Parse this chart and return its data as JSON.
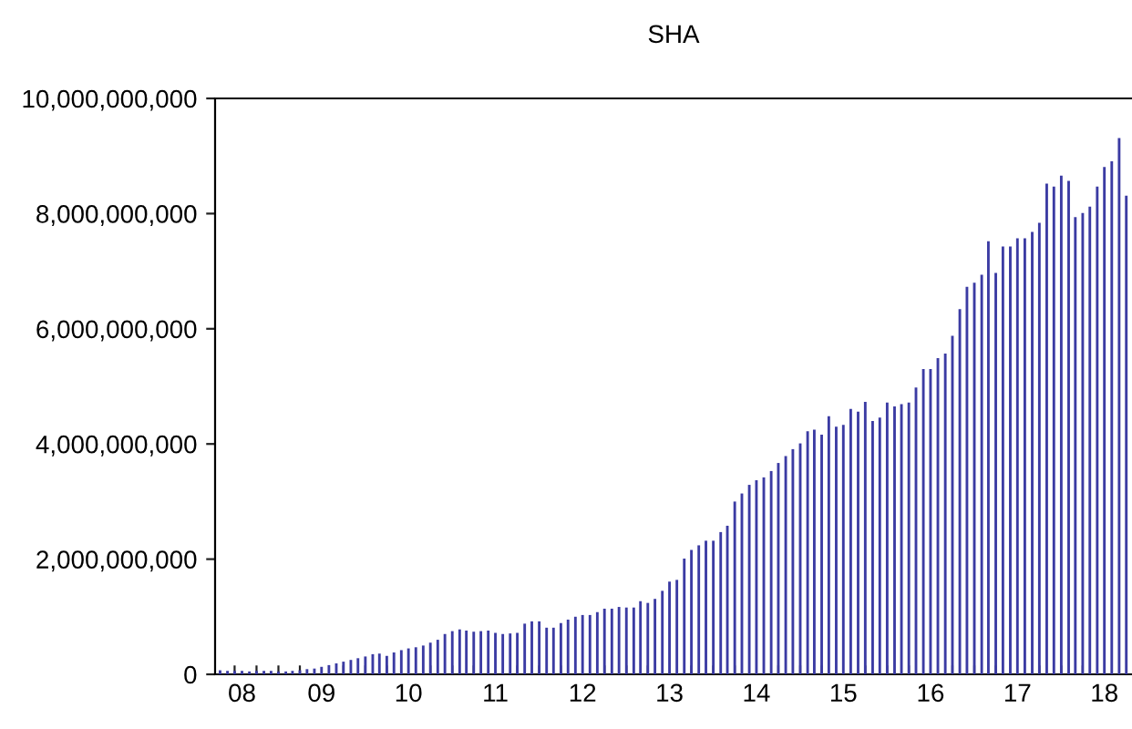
{
  "chart_data": {
    "type": "bar",
    "title": "SHA",
    "x": [
      "2008-05",
      "2008-06",
      "2008-07",
      "2008-08",
      "2008-09",
      "2008-10",
      "2008-11",
      "2008-12",
      "2009-01",
      "2009-02",
      "2009-03",
      "2009-04",
      "2009-05",
      "2009-06",
      "2009-07",
      "2009-08",
      "2009-09",
      "2009-10",
      "2009-11",
      "2009-12",
      "2010-01",
      "2010-02",
      "2010-03",
      "2010-04",
      "2010-05",
      "2010-06",
      "2010-07",
      "2010-08",
      "2010-09",
      "2010-10",
      "2010-11",
      "2010-12",
      "2011-01",
      "2011-02",
      "2011-03",
      "2011-04",
      "2011-05",
      "2011-06",
      "2011-07",
      "2011-08",
      "2011-09",
      "2011-10",
      "2011-11",
      "2011-12",
      "2012-01",
      "2012-02",
      "2012-03",
      "2012-04",
      "2012-05",
      "2012-06",
      "2012-07",
      "2012-08",
      "2012-09",
      "2012-10",
      "2012-11",
      "2012-12",
      "2013-01",
      "2013-02",
      "2013-03",
      "2013-04",
      "2013-05",
      "2013-06",
      "2013-07",
      "2013-08",
      "2013-09",
      "2013-10",
      "2013-11",
      "2013-12",
      "2014-01",
      "2014-02",
      "2014-03",
      "2014-04",
      "2014-05",
      "2014-06",
      "2014-07",
      "2014-08",
      "2014-09",
      "2014-10",
      "2014-11",
      "2014-12",
      "2015-01",
      "2015-02",
      "2015-03",
      "2015-04",
      "2015-05",
      "2015-06",
      "2015-07",
      "2015-08",
      "2015-09",
      "2015-10",
      "2015-11",
      "2015-12",
      "2016-01",
      "2016-02",
      "2016-03",
      "2016-04",
      "2016-05",
      "2016-06",
      "2016-07",
      "2016-08",
      "2016-09",
      "2016-10",
      "2016-11",
      "2016-12",
      "2017-01",
      "2017-02",
      "2017-03",
      "2017-04",
      "2017-05",
      "2017-06",
      "2017-07",
      "2017-08",
      "2017-09",
      "2017-10",
      "2017-11",
      "2017-12",
      "2018-01",
      "2018-02",
      "2018-03",
      "2018-04",
      "2018-05",
      "2018-06",
      "2018-07",
      "2018-08",
      "2018-09",
      "2018-10"
    ],
    "values": [
      70000000,
      60000000,
      60000000,
      60000000,
      50000000,
      60000000,
      60000000,
      60000000,
      50000000,
      50000000,
      60000000,
      70000000,
      90000000,
      100000000,
      130000000,
      160000000,
      190000000,
      220000000,
      250000000,
      280000000,
      310000000,
      350000000,
      360000000,
      320000000,
      380000000,
      420000000,
      450000000,
      470000000,
      500000000,
      550000000,
      600000000,
      700000000,
      750000000,
      780000000,
      760000000,
      740000000,
      750000000,
      760000000,
      720000000,
      700000000,
      710000000,
      720000000,
      880000000,
      920000000,
      920000000,
      810000000,
      810000000,
      890000000,
      950000000,
      1000000000,
      1030000000,
      1030000000,
      1080000000,
      1140000000,
      1140000000,
      1170000000,
      1160000000,
      1160000000,
      1270000000,
      1240000000,
      1310000000,
      1450000000,
      1610000000,
      1640000000,
      2010000000,
      2160000000,
      2240000000,
      2320000000,
      2320000000,
      2470000000,
      2580000000,
      3000000000,
      3140000000,
      3290000000,
      3370000000,
      3420000000,
      3530000000,
      3670000000,
      3790000000,
      3910000000,
      4010000000,
      4220000000,
      4250000000,
      4160000000,
      4480000000,
      4300000000,
      4330000000,
      4610000000,
      4560000000,
      4730000000,
      4400000000,
      4460000000,
      4720000000,
      4650000000,
      4690000000,
      4720000000,
      4980000000,
      5300000000,
      5300000000,
      5490000000,
      5570000000,
      5880000000,
      6340000000,
      6730000000,
      6800000000,
      6940000000,
      7520000000,
      6970000000,
      7430000000,
      7430000000,
      7570000000,
      7570000000,
      7680000000,
      7840000000,
      8520000000,
      8470000000,
      8660000000,
      8570000000,
      7940000000,
      8010000000,
      8120000000,
      8470000000,
      8810000000,
      8910000000,
      9310000000,
      8310000000
    ],
    "color": "#3b3ba3",
    "xlim": [
      "2008-04-10",
      "2018-10-25"
    ],
    "xticks": [
      {
        "value": "2008-07",
        "label": null
      },
      {
        "value": "2008-08",
        "label": "08"
      },
      {
        "value": "2008-10",
        "label": null
      },
      {
        "value": "2009-01",
        "label": null
      },
      {
        "value": "2009-04",
        "label": null
      },
      {
        "value": "2009-07",
        "label": "09"
      },
      {
        "value": "2009-10",
        "label": null
      },
      {
        "value": "2010-01",
        "label": null
      },
      {
        "value": "2010-04",
        "label": null
      },
      {
        "value": "2010-07",
        "label": "10"
      },
      {
        "value": "2010-10",
        "label": null
      },
      {
        "value": "2011-01",
        "label": null
      },
      {
        "value": "2011-04",
        "label": null
      },
      {
        "value": "2011-07",
        "label": "11"
      },
      {
        "value": "2011-10",
        "label": null
      },
      {
        "value": "2012-01",
        "label": null
      },
      {
        "value": "2012-04",
        "label": null
      },
      {
        "value": "2012-07",
        "label": "12"
      },
      {
        "value": "2012-10",
        "label": null
      },
      {
        "value": "2013-01",
        "label": null
      },
      {
        "value": "2013-04",
        "label": null
      },
      {
        "value": "2013-07",
        "label": "13"
      },
      {
        "value": "2013-10",
        "label": null
      },
      {
        "value": "2014-01",
        "label": null
      },
      {
        "value": "2014-04",
        "label": null
      },
      {
        "value": "2014-07",
        "label": "14"
      },
      {
        "value": "2014-10",
        "label": null
      },
      {
        "value": "2015-01",
        "label": null
      },
      {
        "value": "2015-04",
        "label": null
      },
      {
        "value": "2015-07",
        "label": "15"
      },
      {
        "value": "2015-10",
        "label": null
      },
      {
        "value": "2016-01",
        "label": null
      },
      {
        "value": "2016-04",
        "label": null
      },
      {
        "value": "2016-07",
        "label": "16"
      },
      {
        "value": "2016-10",
        "label": null
      },
      {
        "value": "2017-01",
        "label": null
      },
      {
        "value": "2017-04",
        "label": null
      },
      {
        "value": "2017-07",
        "label": "17"
      },
      {
        "value": "2017-10",
        "label": null
      },
      {
        "value": "2018-01",
        "label": null
      },
      {
        "value": "2018-04",
        "label": null
      },
      {
        "value": "2018-07",
        "label": "18"
      }
    ],
    "ylim": [
      0,
      10000000000
    ],
    "yticks": [
      {
        "value": 0,
        "label": "0"
      },
      {
        "value": 2000000000,
        "label": "2,000,000,000"
      },
      {
        "value": 4000000000,
        "label": "4,000,000,000"
      },
      {
        "value": 6000000000,
        "label": "6,000,000,000"
      },
      {
        "value": 8000000000,
        "label": "8,000,000,000"
      },
      {
        "value": 10000000000,
        "label": "10,000,000,000"
      }
    ],
    "grid": false,
    "legend": false
  }
}
